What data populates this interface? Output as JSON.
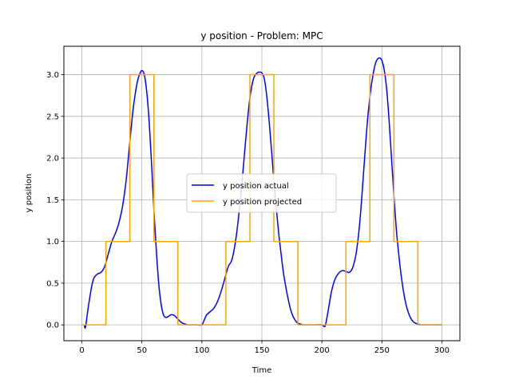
{
  "chart_data": {
    "type": "line",
    "title": "y position - Problem: MPC",
    "xlabel": "Time",
    "ylabel": "y position",
    "xlim": [
      -15,
      315
    ],
    "ylim": [
      -0.19,
      3.34
    ],
    "xticks": [
      0,
      50,
      100,
      150,
      200,
      250,
      300
    ],
    "yticks": [
      0.0,
      0.5,
      1.0,
      1.5,
      2.0,
      2.5,
      3.0
    ],
    "xtick_labels": [
      "0",
      "50",
      "100",
      "150",
      "200",
      "250",
      "300"
    ],
    "ytick_labels": [
      "0.0",
      "0.5",
      "1.0",
      "1.5",
      "2.0",
      "2.5",
      "3.0"
    ],
    "grid": true,
    "legend_position": "center",
    "series": [
      {
        "name": "y position actual",
        "color": "#0000ff",
        "style": "smooth",
        "x": [
          2,
          3,
          5,
          8,
          10,
          13,
          16,
          19,
          22,
          25,
          28,
          31,
          34,
          37,
          40,
          43,
          46,
          48,
          50,
          52,
          54,
          56,
          58,
          60,
          62,
          64,
          66,
          68,
          70,
          72,
          74,
          76,
          78,
          80,
          82,
          84,
          86,
          88,
          90,
          93,
          96,
          100,
          102,
          104,
          107,
          110,
          113,
          116,
          119,
          122,
          125,
          128,
          131,
          134,
          137,
          140,
          143,
          146,
          148,
          150,
          152,
          154,
          156,
          158,
          160,
          162,
          164,
          166,
          168,
          170,
          172,
          174,
          176,
          178,
          180,
          182,
          184,
          186,
          190,
          195,
          200,
          202,
          203,
          205,
          208,
          211,
          214,
          217,
          220,
          223,
          226,
          229,
          232,
          235,
          238,
          241,
          244,
          246,
          248,
          250,
          252,
          254,
          256,
          258,
          260,
          262,
          264,
          266,
          268,
          270,
          272,
          274,
          276,
          278,
          280,
          282,
          284,
          286,
          290,
          295,
          300
        ],
        "y": [
          0.0,
          -0.03,
          0.18,
          0.45,
          0.56,
          0.61,
          0.63,
          0.7,
          0.85,
          1.0,
          1.1,
          1.23,
          1.43,
          1.75,
          2.2,
          2.62,
          2.9,
          3.0,
          3.05,
          3.0,
          2.8,
          2.45,
          1.95,
          1.38,
          0.9,
          0.5,
          0.25,
          0.12,
          0.09,
          0.1,
          0.12,
          0.12,
          0.1,
          0.07,
          0.04,
          0.02,
          0.01,
          0.0,
          0.0,
          0.0,
          0.0,
          0.0,
          0.06,
          0.12,
          0.16,
          0.2,
          0.28,
          0.4,
          0.55,
          0.7,
          0.78,
          1.0,
          1.35,
          1.8,
          2.3,
          2.72,
          2.95,
          3.02,
          3.03,
          3.02,
          2.95,
          2.75,
          2.45,
          2.1,
          1.72,
          1.4,
          1.1,
          0.85,
          0.62,
          0.45,
          0.3,
          0.18,
          0.1,
          0.05,
          0.02,
          0.01,
          0.0,
          0.0,
          0.0,
          0.0,
          0.0,
          -0.02,
          0.0,
          0.15,
          0.4,
          0.55,
          0.62,
          0.65,
          0.64,
          0.63,
          0.7,
          0.9,
          1.3,
          1.88,
          2.45,
          2.85,
          3.1,
          3.18,
          3.2,
          3.17,
          3.05,
          2.82,
          2.45,
          2.0,
          1.55,
          1.15,
          0.85,
          0.6,
          0.4,
          0.25,
          0.15,
          0.08,
          0.04,
          0.02,
          0.01,
          0.0,
          0.0,
          0.0,
          0.0,
          0.0,
          0.0
        ]
      },
      {
        "name": "y position projected",
        "color": "#ffa500",
        "style": "linear",
        "x": [
          0,
          20,
          20,
          40,
          40,
          60,
          60,
          80,
          80,
          120,
          120,
          140,
          140,
          160,
          160,
          180,
          180,
          220,
          220,
          240,
          240,
          260,
          260,
          280,
          280,
          300
        ],
        "y": [
          0,
          0,
          1,
          1,
          3,
          3,
          1,
          1,
          0,
          0,
          1,
          1,
          3,
          3,
          1,
          1,
          0,
          0,
          1,
          1,
          3,
          3,
          1,
          1,
          0,
          0
        ]
      }
    ]
  }
}
